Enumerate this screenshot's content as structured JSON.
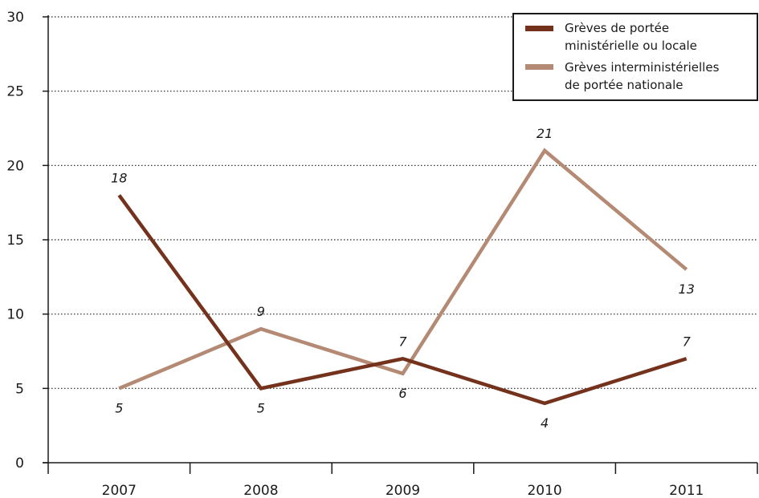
{
  "chart_data": {
    "type": "line",
    "categories": [
      "2007",
      "2008",
      "2009",
      "2010",
      "2011"
    ],
    "ylim": [
      0,
      30
    ],
    "yticks": [
      0,
      5,
      10,
      15,
      20,
      25,
      30
    ],
    "grid": true,
    "legend_position": "top-right",
    "series": [
      {
        "name_lines": [
          "Grèves de portée",
          "ministérielle ou locale"
        ],
        "color": "#74321d",
        "values": [
          18,
          5,
          7,
          4,
          7
        ],
        "labels": [
          "18",
          "5",
          "7",
          "4",
          "7"
        ]
      },
      {
        "name_lines": [
          "Grèves interministérielles",
          "de portée nationale"
        ],
        "color": "#b48a74",
        "values": [
          5,
          9,
          6,
          21,
          13
        ],
        "labels": [
          "5",
          "9",
          "6",
          "21",
          "13"
        ]
      }
    ]
  }
}
